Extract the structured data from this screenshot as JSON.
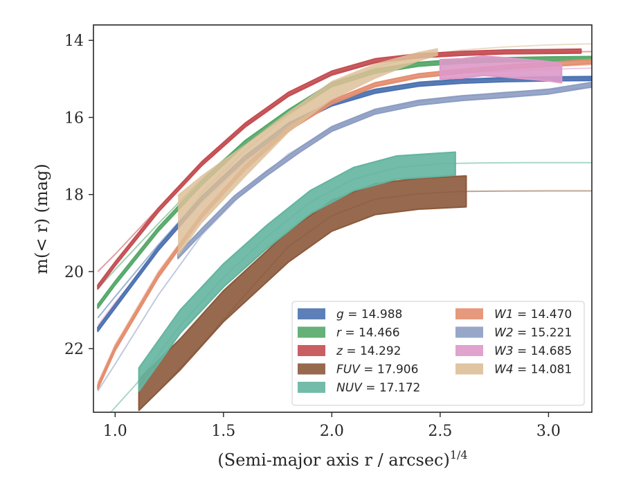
{
  "chart_data": {
    "type": "line",
    "xlabel": "(Semi-major axis r / arcsec)",
    "xlabel_power": "1/4",
    "ylabel": "m(< r) (mag)",
    "xlim": [
      0.9,
      3.2
    ],
    "ylim": [
      23.65,
      13.6
    ],
    "y_inverted": true,
    "x_ticks": [
      1.0,
      1.5,
      2.0,
      2.5,
      3.0
    ],
    "x_tick_labels": [
      "1.0",
      "1.5",
      "2.0",
      "2.5",
      "3.0"
    ],
    "y_ticks": [
      14,
      16,
      18,
      20,
      22
    ],
    "y_tick_labels": [
      "14",
      "16",
      "18",
      "20",
      "22"
    ],
    "grid": false,
    "legend_placement": "lower-right",
    "legend_columns": 2,
    "series": [
      {
        "name": "g = 14.988",
        "band": "g",
        "total": "14.988",
        "color": "#4c72b0",
        "band_width": 0.05,
        "data_x": [
          0.92,
          1.0,
          1.2,
          1.4,
          1.6,
          1.8,
          2.0,
          2.2,
          2.4,
          2.6,
          2.8,
          3.0,
          3.2
        ],
        "data_y": [
          21.5,
          20.9,
          19.4,
          18.1,
          17.05,
          16.2,
          15.65,
          15.32,
          15.14,
          15.06,
          15.02,
          15.0,
          14.99
        ],
        "model_x": [
          0.92,
          1.0,
          1.2,
          1.4,
          1.6,
          1.8,
          2.0,
          2.2,
          2.4,
          2.6,
          2.8,
          3.0,
          3.2
        ],
        "model_y": [
          21.2,
          20.65,
          19.3,
          18.05,
          17.0,
          16.2,
          15.65,
          15.32,
          15.14,
          15.05,
          15.01,
          14.99,
          14.988
        ]
      },
      {
        "name": "r = 14.466",
        "band": "r",
        "total": "14.466",
        "color": "#55a868",
        "band_width": 0.05,
        "data_x": [
          0.92,
          1.0,
          1.2,
          1.4,
          1.6,
          1.8,
          2.0,
          2.2,
          2.4,
          2.6,
          2.8,
          3.0,
          3.2
        ],
        "data_y": [
          20.9,
          20.3,
          18.9,
          17.7,
          16.65,
          15.85,
          15.15,
          14.8,
          14.62,
          14.54,
          14.5,
          14.48,
          14.47
        ],
        "model_x": [
          0.92,
          1.0,
          1.2,
          1.4,
          1.6,
          1.8,
          2.0,
          2.2,
          2.4,
          2.6,
          2.8,
          3.0,
          3.2
        ],
        "model_y": [
          20.45,
          19.95,
          18.75,
          17.6,
          16.6,
          15.8,
          15.15,
          14.8,
          14.62,
          14.53,
          14.49,
          14.47,
          14.466
        ]
      },
      {
        "name": "z = 14.292",
        "band": "z",
        "total": "14.292",
        "color": "#c44e52",
        "band_width": 0.05,
        "data_x": [
          0.92,
          1.0,
          1.2,
          1.4,
          1.6,
          1.8,
          2.0,
          2.2,
          2.4,
          2.6,
          2.8,
          3.0,
          3.15
        ],
        "data_y": [
          20.4,
          19.8,
          18.4,
          17.2,
          16.2,
          15.4,
          14.85,
          14.53,
          14.4,
          14.34,
          14.3,
          14.29,
          14.28
        ],
        "model_x": [
          0.92,
          1.0,
          1.2,
          1.4,
          1.6,
          1.8,
          2.0,
          2.2,
          2.4,
          2.6,
          2.8,
          3.0,
          3.2
        ],
        "model_y": [
          20.0,
          19.55,
          18.35,
          17.2,
          16.2,
          15.42,
          14.87,
          14.55,
          14.4,
          14.34,
          14.31,
          14.3,
          14.292
        ]
      },
      {
        "name": "FUV = 17.906",
        "band": "FUV",
        "total": "17.906",
        "color": "#8c5a3c",
        "band_width": 0.4,
        "data_x": [
          1.11,
          1.3,
          1.5,
          1.8,
          2.0,
          2.2,
          2.4,
          2.62
        ],
        "data_y": [
          23.2,
          22.15,
          20.9,
          19.35,
          18.55,
          18.12,
          17.98,
          17.92
        ],
        "model_x": [
          1.11,
          1.2,
          1.4,
          1.6,
          1.8,
          2.0,
          2.2,
          2.4,
          2.6,
          2.8,
          3.0,
          3.2
        ],
        "model_y": [
          23.6,
          23.1,
          21.9,
          20.6,
          19.35,
          18.55,
          18.12,
          17.98,
          17.92,
          17.91,
          17.906,
          17.906
        ]
      },
      {
        "name": "NUV = 17.172",
        "band": "NUV",
        "total": "17.172",
        "color": "#64b5a0",
        "band_width": 0.3,
        "data_x": [
          1.11,
          1.3,
          1.5,
          1.7,
          1.9,
          2.1,
          2.3,
          2.57
        ],
        "data_y": [
          22.8,
          21.3,
          20.1,
          19.1,
          18.2,
          17.6,
          17.3,
          17.2
        ],
        "model_x": [
          0.98,
          1.1,
          1.3,
          1.5,
          1.7,
          1.9,
          2.1,
          2.3,
          2.5,
          2.7,
          2.9,
          3.2
        ],
        "model_y": [
          23.65,
          22.9,
          21.4,
          20.15,
          19.1,
          18.2,
          17.6,
          17.3,
          17.2,
          17.18,
          17.175,
          17.172
        ]
      },
      {
        "name": "W1 = 14.470",
        "band": "W1",
        "total": "14.470",
        "color": "#e48e6f",
        "band_width": 0.05,
        "data_x": [
          0.92,
          1.0,
          1.2,
          1.4,
          1.6,
          1.8,
          2.0,
          2.2,
          2.4,
          2.6,
          2.8,
          3.0,
          3.2
        ],
        "data_y": [
          23.0,
          22.0,
          20.1,
          18.55,
          17.3,
          16.3,
          15.6,
          15.15,
          14.92,
          14.8,
          14.7,
          14.62,
          14.55
        ],
        "model_x": [
          0.92,
          1.0,
          1.2,
          1.4,
          1.6,
          1.8,
          2.0,
          2.2,
          2.4,
          2.6,
          2.8,
          3.0,
          3.2
        ],
        "model_y": [
          22.9,
          21.9,
          20.0,
          18.5,
          17.25,
          16.3,
          15.6,
          15.16,
          14.95,
          14.82,
          14.74,
          14.68,
          14.63
        ]
      },
      {
        "name": "W2 = 15.221",
        "band": "W2",
        "total": "15.221",
        "color": "#8d9dc3",
        "band_width": 0.06,
        "data_x": [
          1.29,
          1.4,
          1.55,
          1.7,
          1.85,
          2.0,
          2.2,
          2.4,
          2.6,
          2.8,
          3.0,
          3.2
        ],
        "data_y": [
          19.6,
          18.95,
          18.1,
          17.45,
          16.85,
          16.3,
          15.85,
          15.62,
          15.5,
          15.42,
          15.33,
          15.15
        ],
        "model_x": [
          0.92,
          1.0,
          1.2,
          1.4,
          1.6,
          1.8,
          2.0,
          2.2,
          2.4,
          2.6,
          2.8,
          3.0,
          3.2
        ],
        "model_y": [
          23.1,
          22.4,
          20.6,
          19.05,
          17.9,
          16.95,
          16.3,
          15.85,
          15.6,
          15.45,
          15.35,
          15.28,
          15.22
        ]
      },
      {
        "name": "W3 = 14.685",
        "band": "W3",
        "total": "14.685",
        "color": "#dd99c8",
        "band_width": 0.25,
        "data_x": [
          2.5,
          2.6,
          2.7,
          2.8,
          2.9,
          3.0,
          3.06
        ],
        "data_y": [
          14.75,
          14.73,
          14.66,
          14.7,
          14.75,
          14.8,
          14.85
        ],
        "model_x": [
          0.92,
          1.0,
          1.2,
          1.4,
          1.6,
          1.8,
          2.0,
          2.2,
          2.4,
          2.6,
          2.8,
          3.0,
          3.2
        ],
        "model_y": [
          21.4,
          20.8,
          19.45,
          18.2,
          17.15,
          16.25,
          15.6,
          15.2,
          14.95,
          14.85,
          14.8,
          14.75,
          14.72
        ]
      },
      {
        "name": "W4 = 14.081",
        "band": "W4",
        "total": "14.081",
        "color": "#ddbf99",
        "band_x": [
          1.29,
          1.4,
          1.6,
          1.8,
          2.0,
          2.2,
          2.4,
          2.49
        ],
        "band_upper": [
          19.6,
          18.75,
          17.55,
          16.4,
          15.55,
          15.0,
          14.55,
          14.4
        ],
        "band_lower": [
          18.0,
          17.5,
          16.7,
          15.85,
          15.05,
          14.6,
          14.3,
          14.2
        ],
        "model_x": [
          1.29,
          1.4,
          1.6,
          1.8,
          2.0,
          2.2,
          2.4,
          2.6,
          2.8,
          3.0,
          3.2
        ],
        "model_y": [
          18.8,
          17.95,
          16.85,
          15.95,
          15.2,
          14.7,
          14.4,
          14.25,
          14.17,
          14.12,
          14.09
        ]
      }
    ]
  }
}
